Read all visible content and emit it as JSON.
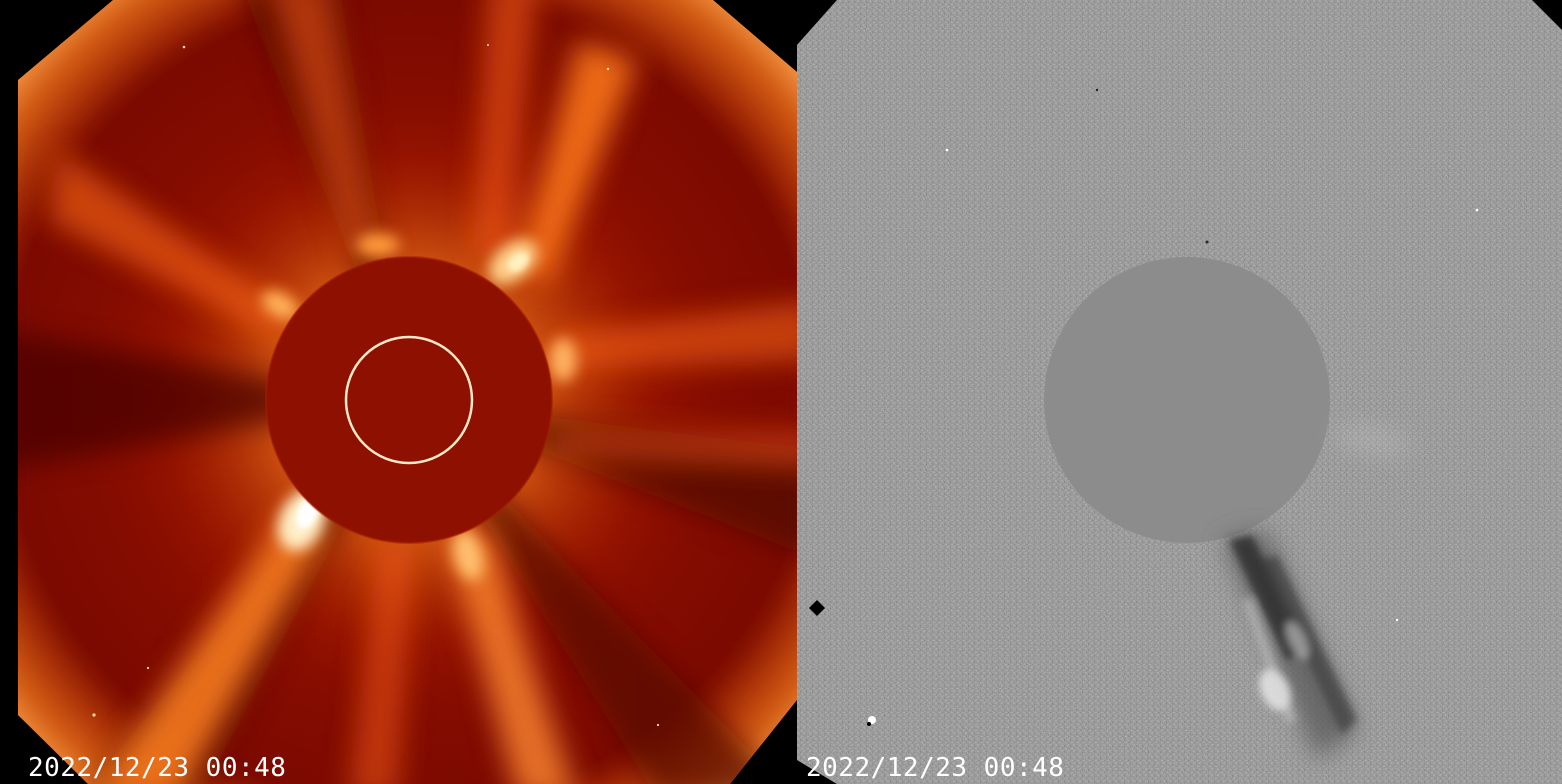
{
  "panels": [
    {
      "name": "coronagraph-direct",
      "timestamp": "2022/12/23 00:48",
      "colors": {
        "background": "#8a0e00",
        "occulter": "#8e1000",
        "streamer": "#ff9a3a",
        "bright": "#fff3cf",
        "sun_limb": "#ffe9c8"
      }
    },
    {
      "name": "coronagraph-difference",
      "timestamp": "2022/12/23 00:48",
      "colors": {
        "background": "#8f8f8f",
        "occulter": "#8c8c8c",
        "dark_feature": "#2e2e2e",
        "light_feature": "#e6e6e6"
      }
    }
  ]
}
